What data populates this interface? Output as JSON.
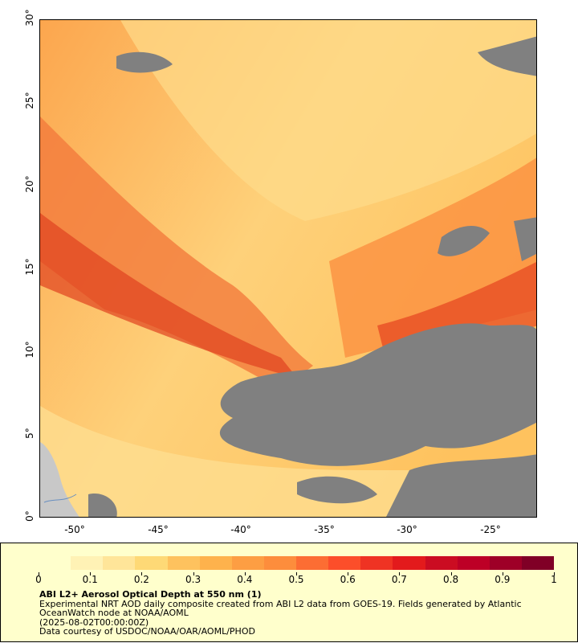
{
  "map": {
    "lat_labels": [
      "0°",
      "5°",
      "10°",
      "15°",
      "20°",
      "25°",
      "30°"
    ],
    "lon_labels": [
      "-50°",
      "-45°",
      "-40°",
      "-35°",
      "-30°",
      "-25°"
    ],
    "lat_range": [
      0,
      30
    ],
    "lon_range": [
      -52.2,
      -22.3
    ],
    "no_data_color": "#808080",
    "land_color": "#c8c8c8"
  },
  "legend": {
    "tick_labels": [
      "0",
      "0.1",
      "0.2",
      "0.3",
      "0.4",
      "0.5",
      "0.6",
      "0.7",
      "0.8",
      "0.9",
      "1"
    ],
    "title": "ABI L2+ Aerosol Optical Depth at 550 nm (1)",
    "line1": "Experimental NRT AOD daily composite created from ABI L2 data from GOES-19. Fields generated by Atlantic OceanWatch node at NOAA/AOML",
    "line2": "(2025-08-02T00:00:00Z)",
    "line3": "Data courtesy of USDOC/NOAA/OAR/AOML/PHOD",
    "colors": [
      "#ffffcc",
      "#fff2b5",
      "#ffe599",
      "#fed976",
      "#fec25e",
      "#feb24c",
      "#fd9e43",
      "#fd8d3c",
      "#fc6d33",
      "#fc4e2a",
      "#ef3323",
      "#e31a1c",
      "#cb0c22",
      "#bd0026",
      "#9e0027",
      "#800026"
    ]
  }
}
